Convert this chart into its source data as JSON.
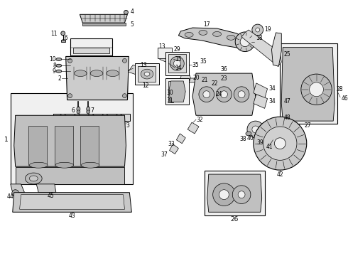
{
  "bg_color": "#ffffff",
  "line_color": "#000000",
  "text_color": "#000000",
  "label_font_size": 5.5,
  "fig_width": 4.9,
  "fig_height": 3.6,
  "dpi": 100,
  "gray_part": "#c8c8c8",
  "light_gray": "#d8d8d8",
  "mid_gray": "#aaaaaa",
  "off_white": "#f0f0f0",
  "dark_gray": "#888888"
}
